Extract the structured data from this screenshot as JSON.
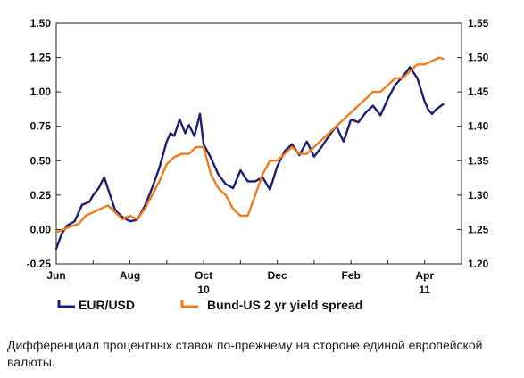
{
  "chart_data": {
    "type": "line",
    "title": "",
    "x_ticks": [
      "Jun",
      "Aug",
      "Oct",
      "Dec",
      "Feb",
      "Apr"
    ],
    "x_year_labels": [
      {
        "after": "Oct",
        "text": "10"
      },
      {
        "after": "Apr",
        "text": "11"
      }
    ],
    "y_left": {
      "range": [
        -0.25,
        1.5
      ],
      "ticks": [
        "-0.25",
        "0.00",
        "0.25",
        "0.50",
        "0.75",
        "1.00",
        "1.25",
        "1.50"
      ]
    },
    "y_right": {
      "range": [
        1.2,
        1.55
      ],
      "ticks": [
        "1.20",
        "1.25",
        "1.30",
        "1.35",
        "1.40",
        "1.45",
        "1.50",
        "1.55"
      ]
    },
    "grid": false,
    "legend_position": "bottom",
    "x_range_months": [
      0,
      11
    ],
    "series": [
      {
        "name": "EUR/USD",
        "axis": "left",
        "color": "#1a1f6e",
        "x": [
          0,
          0.15,
          0.3,
          0.5,
          0.7,
          0.9,
          1.0,
          1.15,
          1.3,
          1.45,
          1.6,
          1.8,
          2.0,
          2.2,
          2.4,
          2.6,
          2.8,
          3.0,
          3.1,
          3.2,
          3.35,
          3.5,
          3.6,
          3.75,
          3.9,
          4.0,
          4.2,
          4.4,
          4.6,
          4.8,
          5.0,
          5.2,
          5.4,
          5.6,
          5.8,
          6.0,
          6.2,
          6.4,
          6.6,
          6.8,
          7.0,
          7.2,
          7.4,
          7.6,
          7.8,
          8.0,
          8.2,
          8.4,
          8.6,
          8.8,
          9.0,
          9.2,
          9.4,
          9.6,
          9.8,
          10.0,
          10.1,
          10.2,
          10.3,
          10.4,
          10.5
        ],
        "values": [
          -0.14,
          -0.03,
          0.03,
          0.06,
          0.18,
          0.2,
          0.25,
          0.3,
          0.38,
          0.26,
          0.14,
          0.09,
          0.06,
          0.07,
          0.17,
          0.3,
          0.45,
          0.64,
          0.7,
          0.68,
          0.8,
          0.7,
          0.76,
          0.68,
          0.84,
          0.62,
          0.52,
          0.4,
          0.33,
          0.3,
          0.43,
          0.35,
          0.35,
          0.38,
          0.29,
          0.46,
          0.57,
          0.62,
          0.54,
          0.64,
          0.53,
          0.6,
          0.68,
          0.75,
          0.64,
          0.8,
          0.78,
          0.85,
          0.9,
          0.83,
          0.95,
          1.05,
          1.11,
          1.18,
          1.1,
          0.93,
          0.87,
          0.84,
          0.87,
          0.89,
          0.91
        ]
      },
      {
        "name": "Bund-US 2 yr yield spread",
        "axis": "right",
        "color": "#f07a1e",
        "x": [
          0,
          0.2,
          0.4,
          0.6,
          0.8,
          1.0,
          1.2,
          1.4,
          1.6,
          1.8,
          2.0,
          2.2,
          2.4,
          2.6,
          2.8,
          3.0,
          3.2,
          3.4,
          3.6,
          3.8,
          4.0,
          4.2,
          4.4,
          4.6,
          4.8,
          5.0,
          5.2,
          5.4,
          5.6,
          5.8,
          6.0,
          6.2,
          6.4,
          6.6,
          6.8,
          7.0,
          7.2,
          7.4,
          7.6,
          7.8,
          8.0,
          8.2,
          8.4,
          8.6,
          8.8,
          9.0,
          9.2,
          9.4,
          9.6,
          9.8,
          10.0,
          10.2,
          10.4,
          10.5
        ],
        "values": [
          1.246,
          1.25,
          1.255,
          1.258,
          1.27,
          1.275,
          1.28,
          1.285,
          1.275,
          1.265,
          1.27,
          1.265,
          1.28,
          1.3,
          1.32,
          1.345,
          1.355,
          1.36,
          1.36,
          1.37,
          1.37,
          1.33,
          1.31,
          1.3,
          1.28,
          1.27,
          1.27,
          1.3,
          1.33,
          1.35,
          1.35,
          1.36,
          1.37,
          1.36,
          1.36,
          1.37,
          1.38,
          1.39,
          1.4,
          1.41,
          1.42,
          1.43,
          1.44,
          1.45,
          1.45,
          1.46,
          1.47,
          1.47,
          1.48,
          1.49,
          1.49,
          1.495,
          1.5,
          1.498
        ]
      }
    ]
  },
  "caption": "Дифференциал процентных ставок по-прежнему на стороне единой европейской валюты."
}
